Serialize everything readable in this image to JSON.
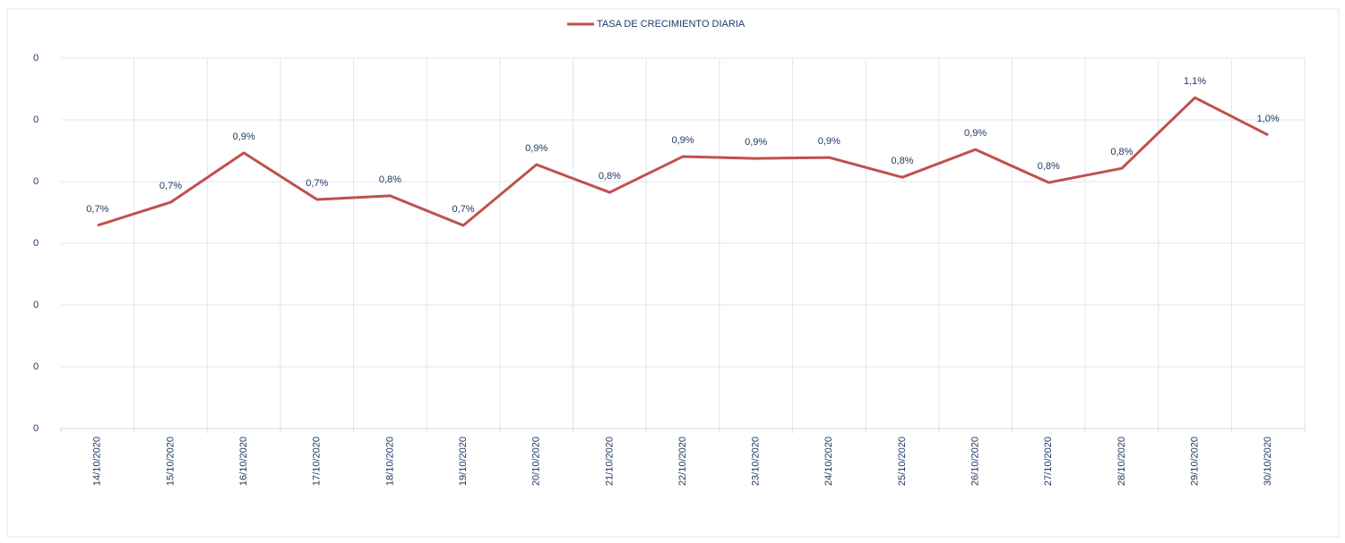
{
  "chart_data": {
    "type": "line",
    "categories": [
      "14/10/2020",
      "15/10/2020",
      "16/10/2020",
      "17/10/2020",
      "18/10/2020",
      "19/10/2020",
      "20/10/2020",
      "21/10/2020",
      "22/10/2020",
      "23/10/2020",
      "24/10/2020",
      "25/10/2020",
      "26/10/2020",
      "27/10/2020",
      "28/10/2020",
      "29/10/2020",
      "30/10/2020"
    ],
    "series": [
      {
        "name": "TASA DE CRECIMIENTO DIARIA",
        "color": "#c0504d",
        "values": [
          0.00658,
          0.00733,
          0.00893,
          0.00742,
          0.00754,
          0.00658,
          0.00855,
          0.00765,
          0.00881,
          0.00875,
          0.00878,
          0.00814,
          0.00904,
          0.00797,
          0.00843,
          0.01072,
          0.00951
        ],
        "value_labels": [
          "0,7%",
          "0,7%",
          "0,9%",
          "0,7%",
          "0,8%",
          "0,7%",
          "0,9%",
          "0,8%",
          "0,9%",
          "0,9%",
          "0,9%",
          "0,8%",
          "0,9%",
          "0,8%",
          "0,8%",
          "1,1%",
          "1,0%"
        ]
      }
    ],
    "ylim": [
      0,
      0.012
    ],
    "yticks": [
      0,
      {
        "value": 0.002,
        "label": "0"
      },
      {
        "value": 0.004,
        "label": "0"
      },
      {
        "value": 0.006,
        "label": "0"
      },
      {
        "value": 0.008,
        "label": "0"
      },
      {
        "value": 0.01,
        "label": "0"
      },
      {
        "value": 0.012,
        "label": "0"
      }
    ],
    "grid": true,
    "legend": "top"
  }
}
